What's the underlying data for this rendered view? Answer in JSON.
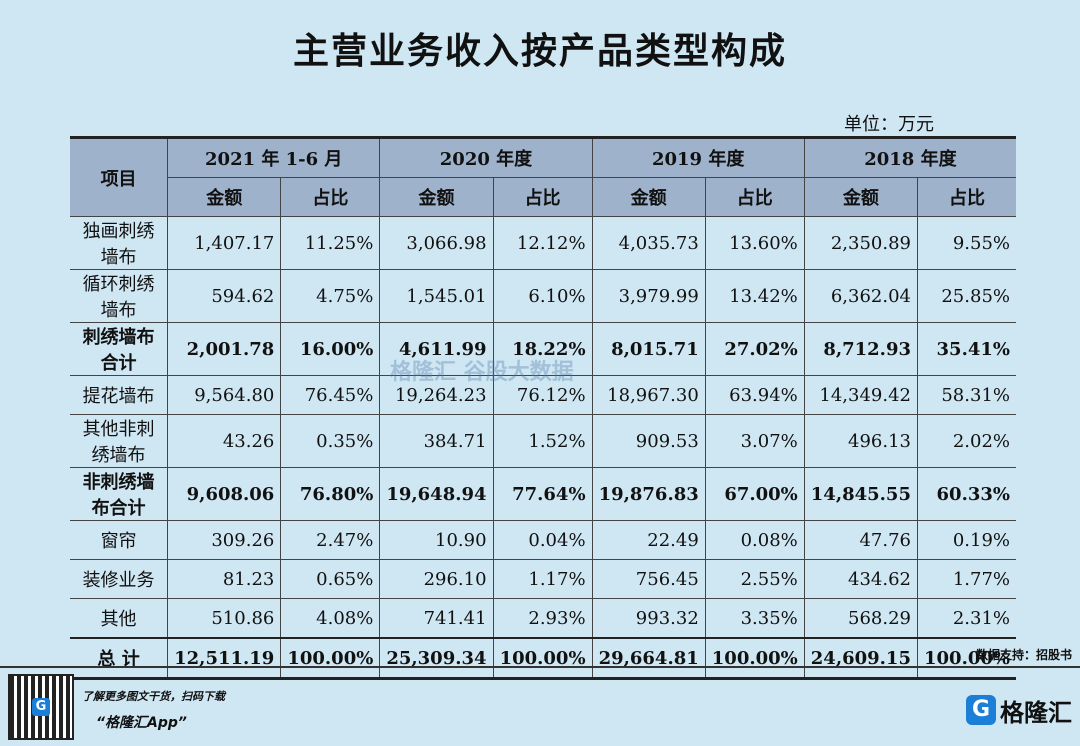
{
  "title": "主营业务收入按产品类型构成",
  "unit": "单位：万元",
  "header": {
    "item": "项目",
    "periods": [
      "2021 年 1-6 月",
      "2020 年度",
      "2019 年度",
      "2018 年度"
    ],
    "amount": "金额",
    "ratio": "占比"
  },
  "rows": [
    {
      "name": "独画刺绣墙布",
      "bold": false,
      "cells": [
        "1,407.17",
        "11.25%",
        "3,066.98",
        "12.12%",
        "4,035.73",
        "13.60%",
        "2,350.89",
        "9.55%"
      ]
    },
    {
      "name": "循环刺绣墙布",
      "bold": false,
      "cells": [
        "594.62",
        "4.75%",
        "1,545.01",
        "6.10%",
        "3,979.99",
        "13.42%",
        "6,362.04",
        "25.85%"
      ]
    },
    {
      "name": "刺绣墙布合计",
      "bold": true,
      "cells": [
        "2,001.78",
        "16.00%",
        "4,611.99",
        "18.22%",
        "8,015.71",
        "27.02%",
        "8,712.93",
        "35.41%"
      ]
    },
    {
      "name": "提花墙布",
      "bold": false,
      "cells": [
        "9,564.80",
        "76.45%",
        "19,264.23",
        "76.12%",
        "18,967.30",
        "63.94%",
        "14,349.42",
        "58.31%"
      ]
    },
    {
      "name": "其他非刺绣墙布",
      "bold": false,
      "cells": [
        "43.26",
        "0.35%",
        "384.71",
        "1.52%",
        "909.53",
        "3.07%",
        "496.13",
        "2.02%"
      ]
    },
    {
      "name": "非刺绣墙布合计",
      "bold": true,
      "cells": [
        "9,608.06",
        "76.80%",
        "19,648.94",
        "77.64%",
        "19,876.83",
        "67.00%",
        "14,845.55",
        "60.33%"
      ]
    },
    {
      "name": "窗帘",
      "bold": false,
      "cells": [
        "309.26",
        "2.47%",
        "10.90",
        "0.04%",
        "22.49",
        "0.08%",
        "47.76",
        "0.19%"
      ]
    },
    {
      "name": "装修业务",
      "bold": false,
      "cells": [
        "81.23",
        "0.65%",
        "296.10",
        "1.17%",
        "756.45",
        "2.55%",
        "434.62",
        "1.77%"
      ]
    },
    {
      "name": "其他",
      "bold": false,
      "cells": [
        "510.86",
        "4.08%",
        "741.41",
        "2.93%",
        "993.32",
        "3.35%",
        "568.29",
        "2.31%"
      ]
    },
    {
      "name": "总 计",
      "bold": true,
      "cells": [
        "12,511.19",
        "100.00%",
        "25,309.34",
        "100.00%",
        "29,664.81",
        "100.00%",
        "24,609.15",
        "100.00%"
      ]
    }
  ],
  "source": "数据支持：招股书",
  "watermark": "格隆汇   谷股大数据",
  "footer": {
    "promo_line": "了解更多图文干货，扫码下载",
    "app_name": "“格隆汇App”",
    "logo_mark": "G",
    "logo_name": "格隆汇"
  },
  "colors": {
    "background": "#cfe7f3",
    "header_fill": "#9eb2cb",
    "brand": "#1b7fd8"
  }
}
